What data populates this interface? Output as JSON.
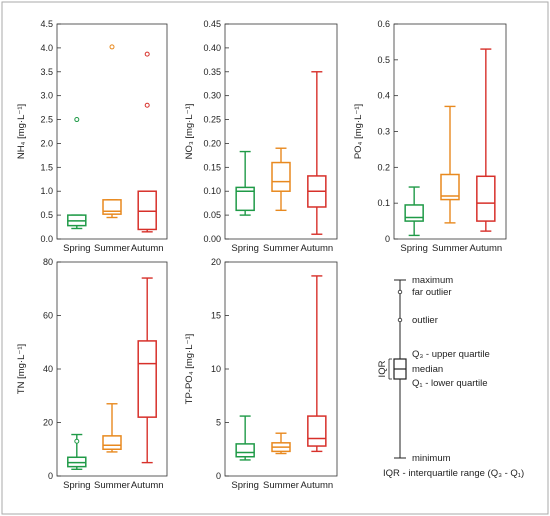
{
  "colors": {
    "Spring": "#1f9a47",
    "Summer": "#e8891f",
    "Autumn": "#d7302a"
  },
  "chart_data": [
    {
      "type": "box",
      "ylabel": "NH₄ [mg·L⁻¹]",
      "ylim": [
        0,
        4.5
      ],
      "yticks": [
        "0.0",
        "0.5",
        "1.0",
        "1.5",
        "2.0",
        "2.5",
        "3.0",
        "3.5",
        "4.0",
        "4.5"
      ],
      "categories": [
        "Spring",
        "Summer",
        "Autumn"
      ],
      "boxes": [
        {
          "name": "Spring",
          "min": 0.22,
          "q1": 0.28,
          "median": 0.38,
          "q3": 0.5,
          "max": 0.5,
          "outliers": [
            2.5
          ]
        },
        {
          "name": "Summer",
          "min": 0.45,
          "q1": 0.52,
          "median": 0.58,
          "q3": 0.82,
          "max": 0.82,
          "outliers": [
            4.02
          ]
        },
        {
          "name": "Autumn",
          "min": 0.15,
          "q1": 0.2,
          "median": 0.58,
          "q3": 1.0,
          "max": 1.0,
          "outliers": [
            2.8,
            3.87
          ]
        }
      ]
    },
    {
      "type": "box",
      "ylabel": "NO₃ [mg·L⁻¹]",
      "ylim": [
        0,
        0.45
      ],
      "yticks": [
        "0.00",
        "0.05",
        "0.10",
        "0.15",
        "0.20",
        "0.25",
        "0.30",
        "0.35",
        "0.40",
        "0.45"
      ],
      "categories": [
        "Spring",
        "Summer",
        "Autumn"
      ],
      "boxes": [
        {
          "name": "Spring",
          "min": 0.05,
          "q1": 0.06,
          "median": 0.1,
          "q3": 0.108,
          "max": 0.183,
          "outliers": []
        },
        {
          "name": "Summer",
          "min": 0.06,
          "q1": 0.1,
          "median": 0.12,
          "q3": 0.16,
          "max": 0.19,
          "outliers": []
        },
        {
          "name": "Autumn",
          "min": 0.01,
          "q1": 0.067,
          "median": 0.1,
          "q3": 0.132,
          "max": 0.35,
          "outliers": []
        }
      ]
    },
    {
      "type": "box",
      "ylabel": "PO₄ [mg·L⁻¹]",
      "ylim": [
        0,
        0.6
      ],
      "yticks": [
        "0",
        "0.1",
        "0.2",
        "0.3",
        "0.4",
        "0.5",
        "0.6"
      ],
      "categories": [
        "Spring",
        "Summer",
        "Autumn"
      ],
      "boxes": [
        {
          "name": "Spring",
          "min": 0.01,
          "q1": 0.05,
          "median": 0.06,
          "q3": 0.095,
          "max": 0.145,
          "outliers": []
        },
        {
          "name": "Summer",
          "min": 0.045,
          "q1": 0.11,
          "median": 0.12,
          "q3": 0.18,
          "max": 0.37,
          "outliers": []
        },
        {
          "name": "Autumn",
          "min": 0.022,
          "q1": 0.05,
          "median": 0.1,
          "q3": 0.175,
          "max": 0.53,
          "outliers": []
        }
      ]
    },
    {
      "type": "box",
      "ylabel": "TN [mg·L⁻¹]",
      "ylim": [
        0,
        80
      ],
      "yticks": [
        "0",
        "20",
        "40",
        "60",
        "80"
      ],
      "categories": [
        "Spring",
        "Summer",
        "Autumn"
      ],
      "boxes": [
        {
          "name": "Spring",
          "min": 2.5,
          "q1": 3.5,
          "median": 5,
          "q3": 7,
          "max": 15.5,
          "outliers": [
            13
          ]
        },
        {
          "name": "Summer",
          "min": 9,
          "q1": 10,
          "median": 11.5,
          "q3": 15,
          "max": 27,
          "outliers": []
        },
        {
          "name": "Autumn",
          "min": 5,
          "q1": 22,
          "median": 42,
          "q3": 50.5,
          "max": 74,
          "outliers": []
        }
      ]
    },
    {
      "type": "box",
      "ylabel": "TP-PO₄ [mg·L⁻¹]",
      "ylim": [
        0,
        20
      ],
      "yticks": [
        "0",
        "5",
        "10",
        "15",
        "20"
      ],
      "categories": [
        "Spring",
        "Summer",
        "Autumn"
      ],
      "boxes": [
        {
          "name": "Spring",
          "min": 1.5,
          "q1": 1.8,
          "median": 2.2,
          "q3": 3,
          "max": 5.6,
          "outliers": []
        },
        {
          "name": "Summer",
          "min": 2.1,
          "q1": 2.3,
          "median": 2.7,
          "q3": 3.1,
          "max": 4,
          "outliers": []
        },
        {
          "name": "Autumn",
          "min": 2.3,
          "q1": 2.8,
          "median": 3.5,
          "q3": 5.6,
          "max": 18.7,
          "outliers": []
        }
      ]
    }
  ],
  "legend": {
    "maximum": "maximum",
    "far_outlier": "far outlier",
    "outlier": "outlier",
    "upper": "Q₃ - upper quartile",
    "median": "median",
    "lower": "Q₁ - lower quartile",
    "minimum": "minimum",
    "iqr": "IQR",
    "footnote": "IQR - interquartile range (Q₃ - Q₁)"
  }
}
